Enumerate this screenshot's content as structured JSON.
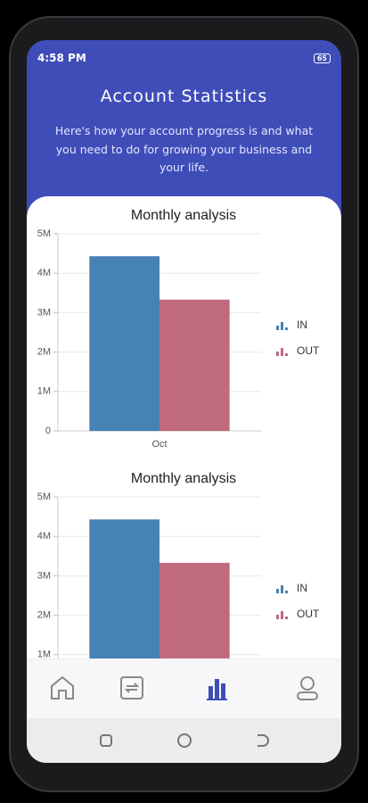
{
  "status_bar": {
    "time": "4:58 PM",
    "battery": "65"
  },
  "header": {
    "title": "Account Statistics",
    "subtitle": "Here's how your account progress is and what you need to do for growing your business and your life."
  },
  "charts": [
    {
      "type": "bar",
      "title": "Monthly analysis",
      "categories": [
        "Oct"
      ],
      "series": [
        {
          "name": "IN",
          "color": "#4682b4",
          "values": [
            4430000
          ]
        },
        {
          "name": "OUT",
          "color": "#c06a7e",
          "values": [
            3330000
          ]
        }
      ],
      "ylim": [
        0,
        5000000
      ],
      "yticks": [
        0,
        {
          "value": 1000000,
          "label": "1M"
        },
        {
          "value": 2000000,
          "label": "2M"
        },
        {
          "value": 3000000,
          "label": "3M"
        },
        {
          "value": 4000000,
          "label": "4M"
        },
        {
          "value": 5000000,
          "label": "5M"
        }
      ],
      "grid": true,
      "legend": "right"
    },
    {
      "type": "bar",
      "title": "Monthly analysis",
      "categories": [
        null
      ],
      "series": [
        {
          "name": "IN",
          "color": "#4682b4",
          "values": [
            4430000
          ]
        },
        {
          "name": "OUT",
          "color": "#c06a7e",
          "values": [
            3330000
          ]
        }
      ],
      "ylim": [
        0,
        5000000
      ],
      "yticks": [
        {
          "value": 1000000,
          "label": "1M"
        },
        {
          "value": 2000000,
          "label": "2M"
        },
        {
          "value": 3000000,
          "label": "3M"
        },
        {
          "value": 4000000,
          "label": "4M"
        },
        {
          "value": 5000000,
          "label": "5M"
        }
      ],
      "grid": true,
      "legend": "right"
    }
  ]
}
